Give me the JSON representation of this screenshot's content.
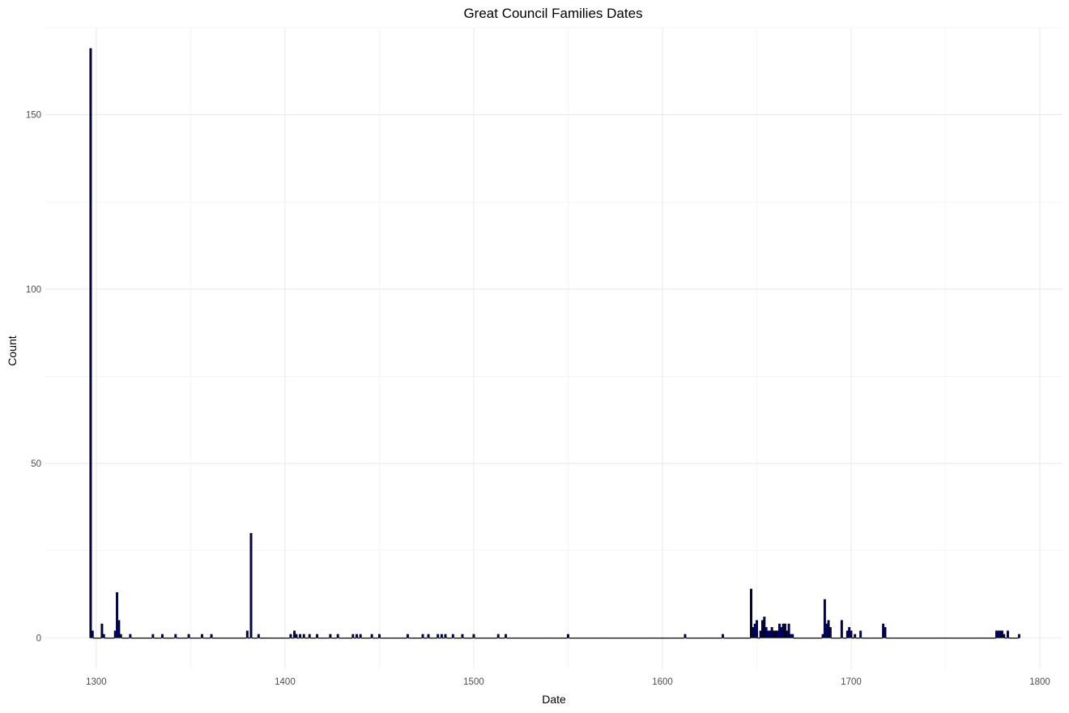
{
  "chart_data": {
    "type": "bar",
    "title": "Great Council Families Dates",
    "xlabel": "Date",
    "ylabel": "Count",
    "xlim": [
      1273,
      1812
    ],
    "ylim": [
      -9,
      175
    ],
    "x_ticks": [
      1300,
      1400,
      1500,
      1600,
      1700,
      1800
    ],
    "x_tick_labels": [
      "1300",
      "1400",
      "1500",
      "1600",
      "1700",
      "1800"
    ],
    "y_ticks": [
      0,
      50,
      100,
      150
    ],
    "y_tick_labels": [
      "0",
      "50",
      "100",
      "150"
    ],
    "bar_range": [
      1297,
      1789
    ],
    "grid": true,
    "bar_color": "#000066",
    "outline_color": "#000000",
    "x": [
      1297,
      1298,
      1303,
      1304,
      1310,
      1311,
      1312,
      1313,
      1318,
      1330,
      1335,
      1342,
      1349,
      1356,
      1361,
      1380,
      1382,
      1386,
      1403,
      1405,
      1406,
      1408,
      1410,
      1413,
      1417,
      1424,
      1428,
      1436,
      1438,
      1440,
      1446,
      1450,
      1465,
      1473,
      1476,
      1481,
      1483,
      1485,
      1489,
      1494,
      1500,
      1513,
      1517,
      1550,
      1612,
      1632,
      1647,
      1648,
      1649,
      1650,
      1652,
      1653,
      1654,
      1655,
      1656,
      1657,
      1658,
      1659,
      1660,
      1661,
      1662,
      1663,
      1664,
      1665,
      1666,
      1667,
      1668,
      1669,
      1685,
      1686,
      1687,
      1688,
      1689,
      1695,
      1698,
      1699,
      1700,
      1702,
      1705,
      1717,
      1718,
      1777,
      1778,
      1779,
      1780,
      1781,
      1783,
      1789
    ],
    "values": [
      169,
      2,
      4,
      1,
      2,
      13,
      5,
      1,
      1,
      1,
      1,
      1,
      1,
      1,
      1,
      2,
      30,
      1,
      1,
      2,
      1,
      1,
      1,
      1,
      1,
      1,
      1,
      1,
      1,
      1,
      1,
      1,
      1,
      1,
      1,
      1,
      1,
      1,
      1,
      1,
      1,
      1,
      1,
      1,
      1,
      1,
      14,
      3,
      4,
      5,
      2,
      5,
      6,
      3,
      2,
      2,
      3,
      2,
      2,
      2,
      4,
      3,
      4,
      4,
      2,
      4,
      1,
      1,
      1,
      11,
      4,
      5,
      3,
      5,
      2,
      3,
      2,
      1,
      2,
      4,
      3,
      2,
      2,
      2,
      2,
      1,
      2,
      1
    ]
  }
}
